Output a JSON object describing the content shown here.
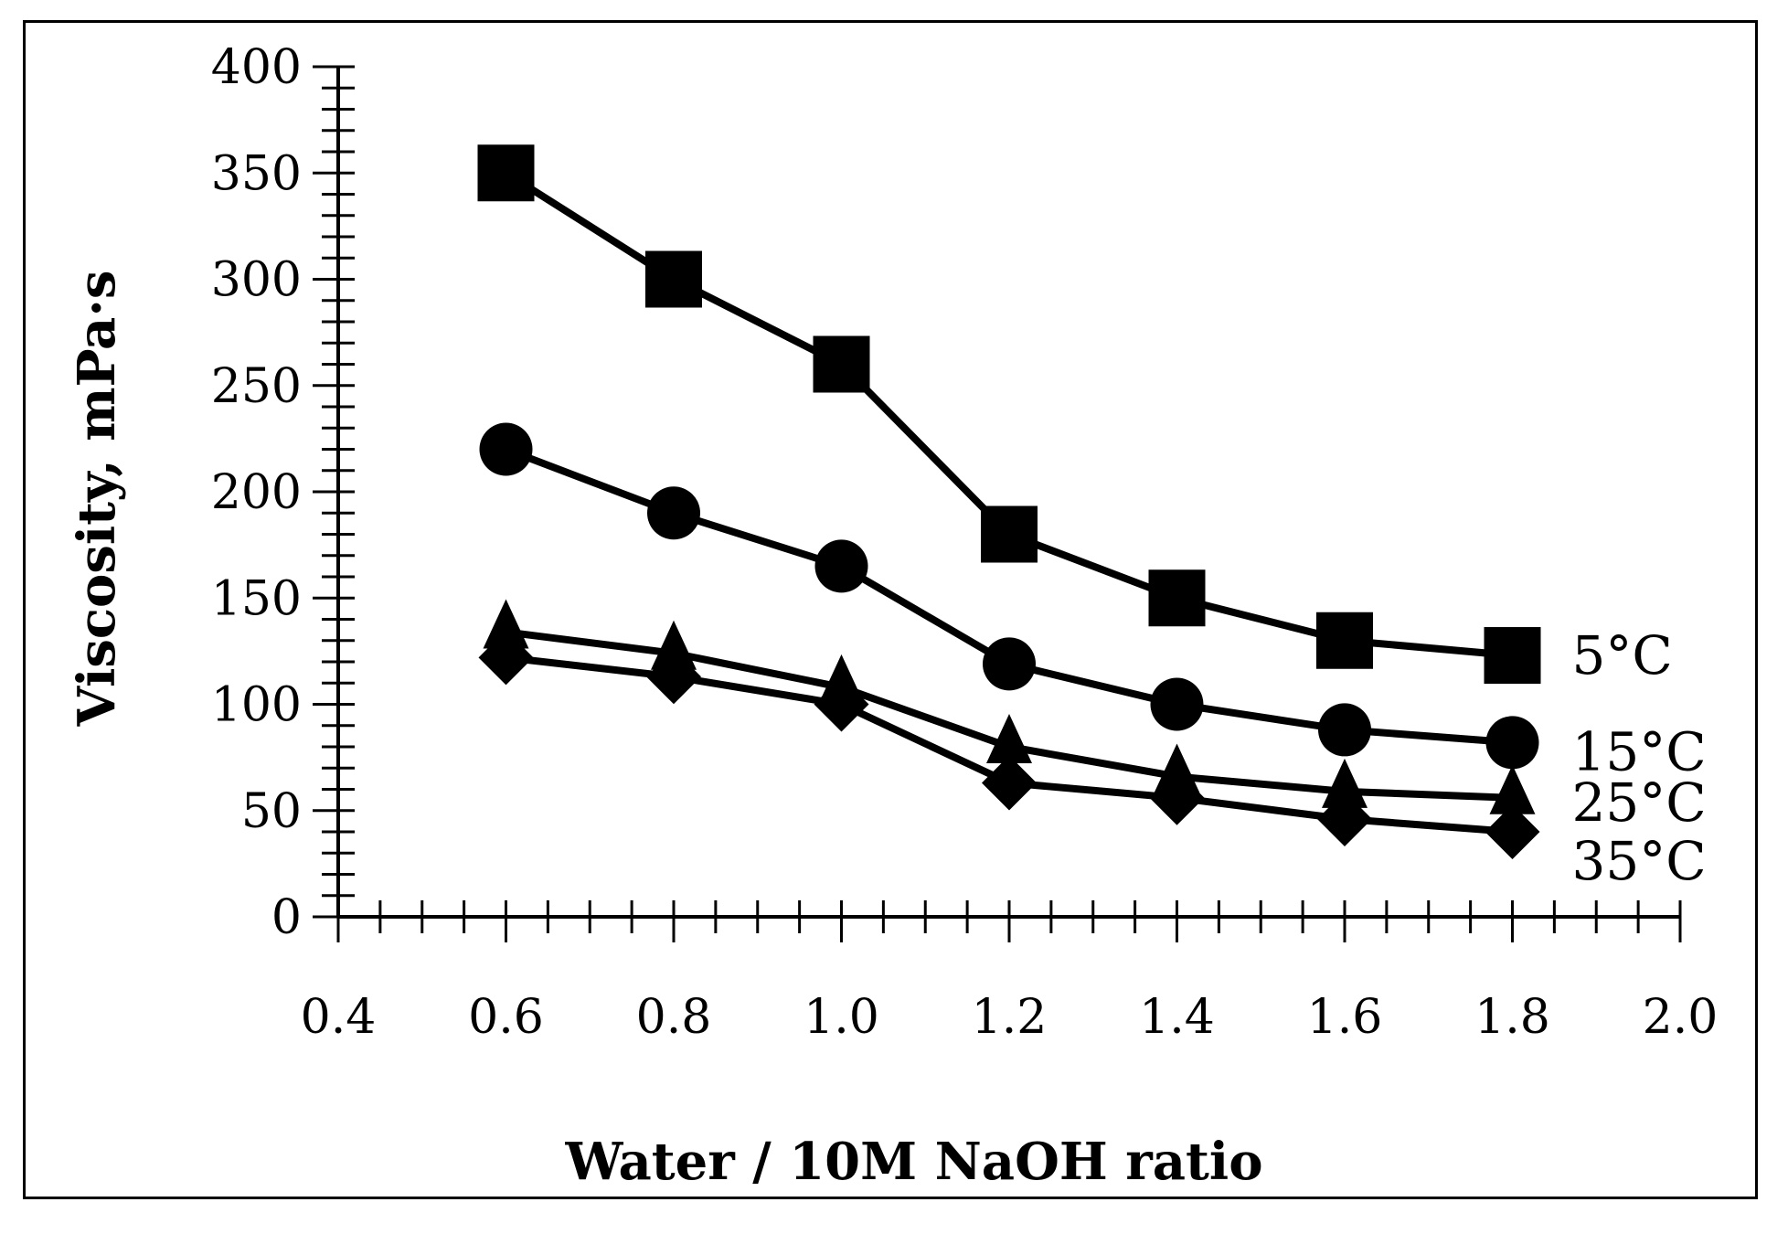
{
  "chart_data": {
    "type": "line",
    "title": "",
    "xlabel": "Water / 10M NaOH ratio",
    "ylabel": "Viscosity, mPa·s",
    "xlim": [
      0.4,
      2.0
    ],
    "ylim": [
      0,
      400
    ],
    "x_ticks": [
      "0.4",
      "0.6",
      "0.8",
      "1.0",
      "1.2",
      "1.4",
      "1.6",
      "1.8",
      "2.0"
    ],
    "y_ticks": [
      "0",
      "50",
      "100",
      "150",
      "200",
      "250",
      "300",
      "350",
      "400"
    ],
    "grid": false,
    "legend": "inline labels at line ends",
    "x": [
      0.6,
      0.8,
      1.0,
      1.2,
      1.4,
      1.6,
      1.8
    ],
    "series": [
      {
        "name": "5°C",
        "label": "5°C",
        "marker": "square",
        "values": [
          350,
          300,
          260,
          180,
          150,
          130,
          123
        ]
      },
      {
        "name": "15°C",
        "label": "15°C",
        "marker": "circle",
        "values": [
          220,
          190,
          165,
          119,
          100,
          88,
          82
        ]
      },
      {
        "name": "25°C",
        "label": "25°C",
        "marker": "triangle",
        "values": [
          134,
          124,
          108,
          80,
          66,
          59,
          56
        ]
      },
      {
        "name": "35°C",
        "label": "35°C",
        "marker": "diamond",
        "values": [
          122,
          113,
          100,
          63,
          56,
          46,
          40
        ]
      }
    ],
    "colors": {
      "line": "#000000",
      "marker": "#000000",
      "background": "#ffffff"
    }
  }
}
